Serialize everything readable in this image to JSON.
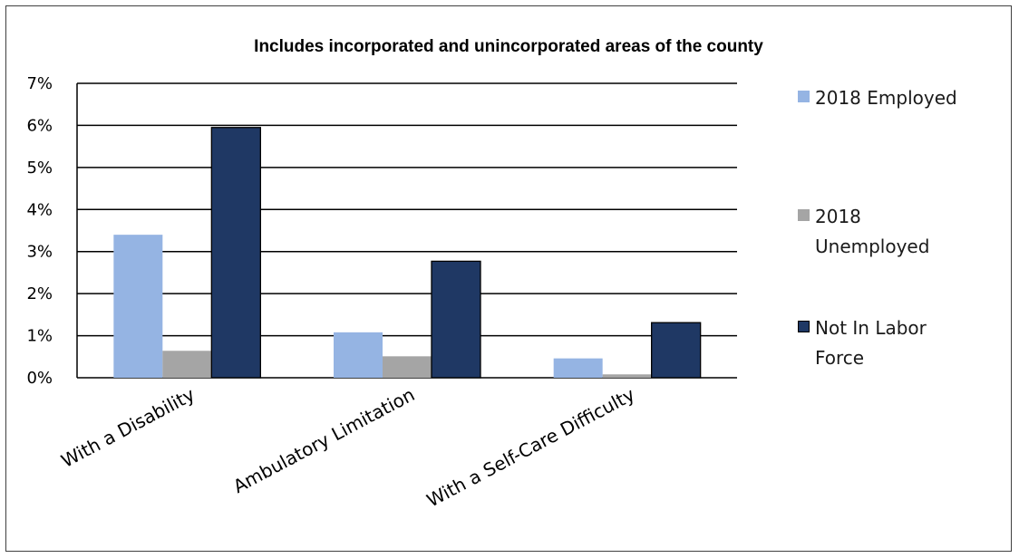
{
  "chart_data": {
    "type": "bar",
    "title": "Includes incorporated and unincorporated areas of the county",
    "categories": [
      "With a Disability",
      "Ambulatory Limitation",
      "With a Self-Care Difficulty"
    ],
    "series": [
      {
        "name": "2018 Employed",
        "color": "#95b4e3",
        "values": [
          3.4,
          1.08,
          0.46
        ]
      },
      {
        "name": "2018 Unemployed",
        "color": "#a5a5a5",
        "values": [
          0.64,
          0.51,
          0.08
        ]
      },
      {
        "name": "Not In Labor Force",
        "color": "#1f3864",
        "values": [
          5.95,
          2.77,
          1.31
        ]
      }
    ],
    "yticks": [
      "0%",
      "1%",
      "2%",
      "3%",
      "4%",
      "5%",
      "6%",
      "7%"
    ],
    "ylim": [
      0,
      7
    ],
    "grid": true,
    "legend_position": "right"
  }
}
